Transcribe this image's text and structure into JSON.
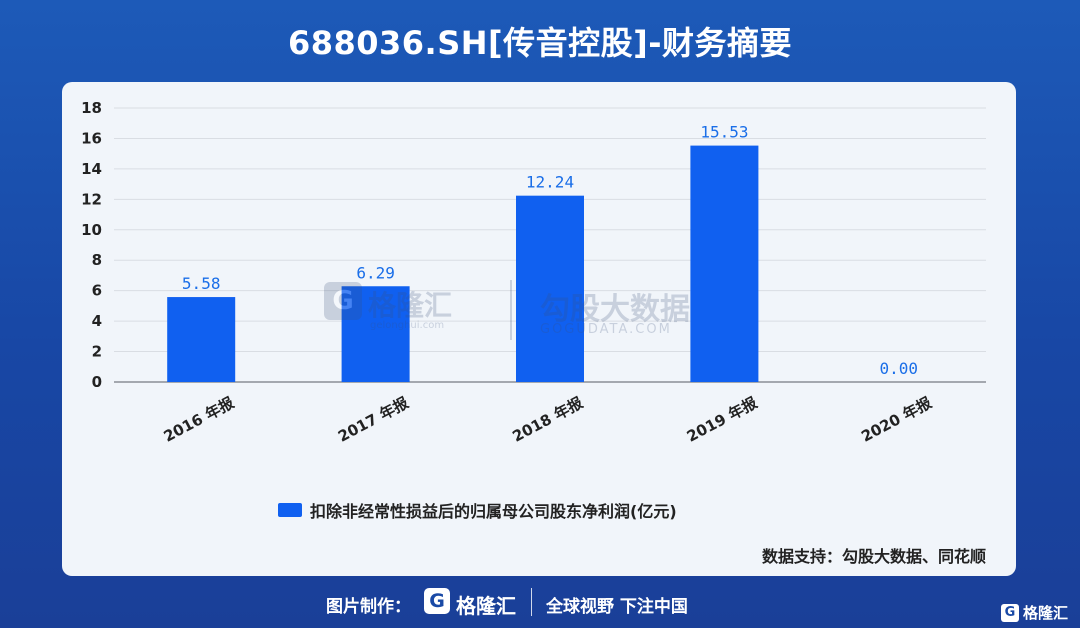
{
  "title": "688036.SH[传音控股]-财务摘要",
  "chart_data": {
    "type": "bar",
    "categories": [
      "2016 年报",
      "2017 年报",
      "2018 年报",
      "2019 年报",
      "2020 年报"
    ],
    "values": [
      5.58,
      6.29,
      12.24,
      15.53,
      0.0
    ],
    "value_labels": [
      "5.58",
      "6.29",
      "12.24",
      "15.53",
      "0.00"
    ],
    "series": [
      {
        "name": "扣除非经常性损益后的归属母公司股东净利润(亿元)",
        "values": [
          5.58,
          6.29,
          12.24,
          15.53,
          0.0
        ],
        "color": "#1060f0"
      }
    ],
    "ylim": [
      0,
      18
    ],
    "yticks": [
      0,
      2,
      4,
      6,
      8,
      10,
      12,
      14,
      16,
      18
    ],
    "grid": true,
    "legend_position": "bottom",
    "xlabel": "",
    "ylabel": ""
  },
  "colors": {
    "bar": "#1060f0",
    "value_label": "#1a6ee8",
    "grid": "#d9dde3",
    "background_top": "#1d5ab8",
    "panel": "#f1f5fa"
  },
  "source": "数据支持：勾股大数据、同花顺",
  "watermark": {
    "brand": "格隆汇",
    "brand_url": "gelonghui.com",
    "partner": "勾股大数据",
    "partner_url": "GOGUDATA.COM",
    "logo_icon": "G"
  },
  "footer": {
    "label": "图片制作：",
    "logo_icon": "G",
    "brand": "格隆汇",
    "slogan": "全球视野 下注中国"
  },
  "corner_brand": "格隆汇"
}
